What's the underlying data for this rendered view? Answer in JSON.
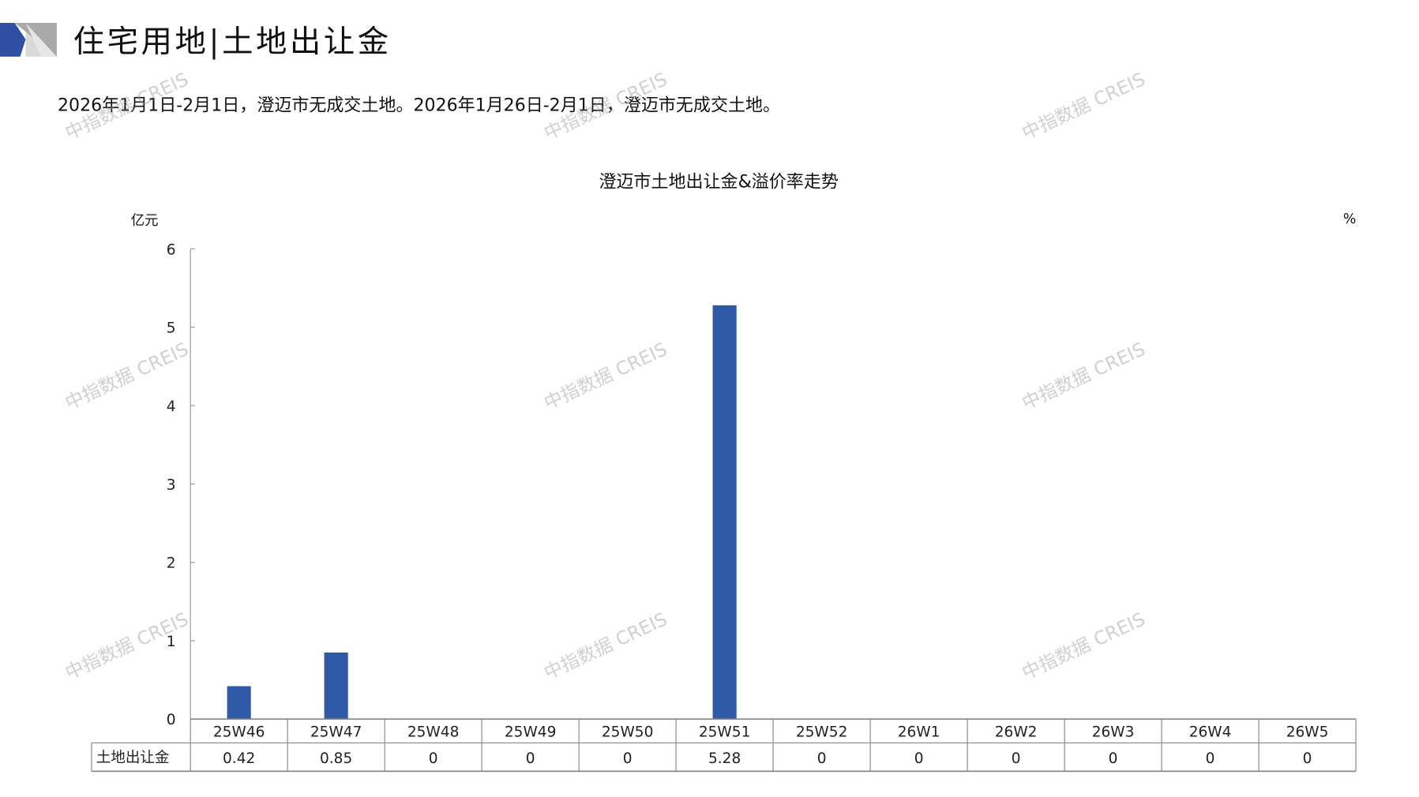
{
  "header": {
    "title": "住宅用地|土地出让金",
    "subtitle": "2026年1月1日-2月1日，澄迈市无成交土地。2026年1月26日-2月1日，澄迈市无成交土地。"
  },
  "watermark": "中指数据 CREIS",
  "colors": {
    "bar": "#2e5aa8",
    "logo_blue": "#2f4fa3",
    "logo_gray": "#a9a9a9",
    "logo_light": "#d9d9d9"
  },
  "chart_data": {
    "type": "bar",
    "title": "澄迈市土地出让金&溢价率走势",
    "ylabel": "亿元",
    "y2label": "%",
    "ylim": [
      0,
      6
    ],
    "yticks": [
      0,
      1,
      2,
      3,
      4,
      5,
      6
    ],
    "categories": [
      "25W46",
      "25W47",
      "25W48",
      "25W49",
      "25W50",
      "25W51",
      "25W52",
      "26W1",
      "26W2",
      "26W3",
      "26W4",
      "26W5"
    ],
    "series": [
      {
        "name": "土地出让金",
        "values": [
          0.42,
          0.85,
          0,
          0,
          0,
          5.28,
          0,
          0,
          0,
          0,
          0,
          0
        ],
        "labels": [
          "0.42",
          "0.85",
          "0",
          "0",
          "0",
          "5.28",
          "0",
          "0",
          "0",
          "0",
          "0",
          "0"
        ]
      }
    ],
    "data_table": true,
    "grid": false
  }
}
